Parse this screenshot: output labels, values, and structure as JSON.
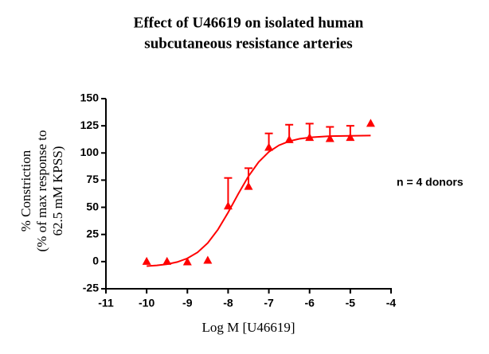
{
  "chart_data": {
    "type": "scatter",
    "title": [
      "Effect of U46619  on isolated human",
      "subcutaneous resistance arteries"
    ],
    "xlabel": "Log M [U46619]",
    "ylabel": [
      "% Constriction",
      "(% of max response to",
      "62.5 mM KPSS)"
    ],
    "annotation": "n = 4 donors",
    "xlim": [
      -11,
      -4
    ],
    "xticks": [
      -11,
      -10,
      -9,
      -8,
      -7,
      -6,
      -5,
      -4
    ],
    "ylim": [
      -25,
      150
    ],
    "yticks": [
      -25,
      0,
      25,
      50,
      75,
      100,
      125,
      150
    ],
    "grid": false,
    "series": [
      {
        "color": "#ff0000",
        "x": [
          -10,
          -9.5,
          -9,
          -8.5,
          -8,
          -7.5,
          -7,
          -6.5,
          -6,
          -5.5,
          -5,
          -4.5
        ],
        "values": [
          0,
          0,
          -0.5,
          1,
          51,
          69,
          105,
          112,
          114,
          113,
          114,
          127
        ],
        "errors": [
          null,
          null,
          null,
          null,
          26,
          17,
          13,
          14,
          13,
          11,
          11,
          null
        ]
      }
    ],
    "fit_curve": {
      "color": "#ff0000",
      "x": [
        -10,
        -9.75,
        -9.5,
        -9.25,
        -9,
        -8.75,
        -8.5,
        -8.25,
        -8,
        -7.75,
        -7.5,
        -7.25,
        -7,
        -6.75,
        -6.5,
        -6.25,
        -6,
        -5.5,
        -5,
        -4.5
      ],
      "values": [
        -4.1,
        -3.5,
        -2.4,
        -0.4,
        3,
        8.5,
        17.1,
        29.5,
        45.2,
        62.4,
        78.6,
        91.7,
        101,
        107.1,
        110.8,
        113,
        114.3,
        115.5,
        115.8,
        116
      ]
    }
  }
}
